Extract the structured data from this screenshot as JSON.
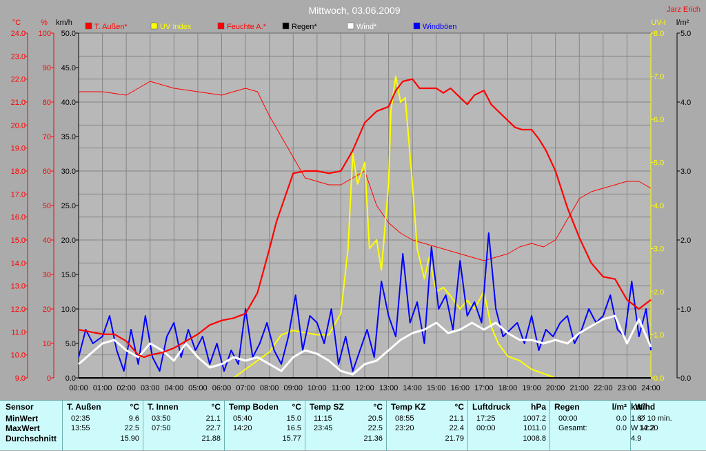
{
  "author": "Jarz Erich",
  "chart_data": {
    "type": "line",
    "title": "Mittwoch, 03.06.2009",
    "x_ticks": [
      "00:00",
      "01:00",
      "02:00",
      "03:00",
      "04:00",
      "05:00",
      "06:00",
      "07:00",
      "08:00",
      "09:00",
      "10:00",
      "11:00",
      "12:00",
      "13:00",
      "14:00",
      "15:00",
      "16:00",
      "17:00",
      "18:00",
      "19:00",
      "20:00",
      "21:00",
      "22:00",
      "23:00",
      "24:00"
    ],
    "xlim": [
      0,
      24
    ],
    "grid": true,
    "legend_position": "top",
    "axes": {
      "temp": {
        "unit": "°C",
        "ylim": [
          9,
          24
        ],
        "ticks": [
          "9.0",
          "10.0",
          "11.0",
          "12.0",
          "13.0",
          "14.0",
          "15.0",
          "16.0",
          "17.0",
          "18.0",
          "19.0",
          "20.0",
          "21.0",
          "22.0",
          "23.0",
          "24.0"
        ]
      },
      "humidity": {
        "unit": "%",
        "ylim": [
          0,
          100
        ],
        "ticks": [
          "0",
          "10",
          "20",
          "30",
          "40",
          "50",
          "60",
          "70",
          "80",
          "90",
          "100"
        ]
      },
      "wind": {
        "unit": "km/h",
        "ylim": [
          0,
          50
        ],
        "ticks": [
          "0.0",
          "5.0",
          "10.0",
          "15.0",
          "20.0",
          "25.0",
          "30.0",
          "35.0",
          "40.0",
          "45.0",
          "50.0"
        ]
      },
      "uv": {
        "unit": "UV-I",
        "ylim": [
          0,
          8
        ],
        "ticks": [
          "0.0",
          "1.0",
          "2.0",
          "3.0",
          "4.0",
          "5.0",
          "6.0",
          "7.0",
          "8.0"
        ]
      },
      "rain": {
        "unit": "l/m²",
        "ylim": [
          0,
          5
        ],
        "ticks": [
          "0.0",
          "1.0",
          "2.0",
          "3.0",
          "4.0",
          "5.0"
        ]
      }
    },
    "series": [
      {
        "name": "T. Außen*",
        "axis": "temp",
        "color": "#ff0000",
        "x": [
          0,
          0.5,
          1,
          1.5,
          2,
          2.5,
          2.75,
          3,
          3.5,
          4,
          4.5,
          5,
          5.5,
          6,
          6.5,
          7,
          7.5,
          8,
          8.3,
          8.6,
          9,
          9.5,
          10,
          10.5,
          11,
          11.5,
          12,
          12.5,
          13,
          13.3,
          13.6,
          14,
          14.3,
          14.6,
          15,
          15.3,
          15.6,
          16,
          16.3,
          16.6,
          17,
          17.3,
          17.6,
          18,
          18.3,
          18.6,
          19,
          19.3,
          19.6,
          20,
          20.5,
          21,
          21.5,
          22,
          22.5,
          23,
          23.5,
          24
        ],
        "y": [
          11.1,
          11.0,
          10.9,
          10.9,
          10.6,
          10.0,
          9.9,
          10.0,
          10.1,
          10.3,
          10.6,
          10.9,
          11.3,
          11.5,
          11.6,
          11.8,
          12.7,
          14.6,
          15.8,
          16.7,
          17.9,
          18.0,
          18.0,
          17.9,
          18.0,
          18.9,
          20.1,
          20.6,
          20.8,
          21.5,
          21.9,
          22.0,
          21.6,
          21.6,
          21.6,
          21.4,
          21.6,
          21.2,
          20.9,
          21.3,
          21.5,
          20.9,
          20.6,
          20.2,
          19.9,
          19.8,
          19.8,
          19.4,
          18.9,
          18.0,
          16.4,
          15.1,
          14.0,
          13.4,
          13.3,
          12.4,
          12.0,
          12.4
        ]
      },
      {
        "name": "UV Index",
        "axis": "uv",
        "color": "#ffff00",
        "x": [
          0,
          6.5,
          7,
          7.5,
          8,
          8.5,
          9,
          9.5,
          10,
          10.5,
          11,
          11.3,
          11.5,
          11.7,
          12,
          12.2,
          12.5,
          12.7,
          13,
          13.1,
          13.3,
          13.5,
          13.7,
          14,
          14.2,
          14.5,
          14.7,
          15,
          15.3,
          15.6,
          16,
          16.3,
          16.6,
          17,
          17.3,
          17.6,
          18,
          18.5,
          19,
          19.5,
          20,
          24
        ],
        "y": [
          0,
          0,
          0.2,
          0.4,
          0.6,
          1.0,
          1.1,
          1.05,
          1.0,
          1.0,
          1.5,
          3.0,
          5.2,
          4.5,
          5.0,
          3.0,
          3.2,
          2.5,
          4.5,
          6.2,
          7.0,
          6.4,
          6.5,
          4.5,
          3.0,
          2.3,
          2.8,
          2.0,
          2.1,
          1.9,
          1.6,
          1.8,
          1.6,
          2.0,
          1.2,
          0.8,
          0.5,
          0.4,
          0.2,
          0.1,
          0,
          0
        ]
      },
      {
        "name": "Feuchte A.*",
        "axis": "humidity",
        "color": "#ff0000",
        "x": [
          0,
          1,
          2,
          2.5,
          3,
          3.5,
          4,
          5,
          6,
          7,
          7.5,
          8,
          8.5,
          9,
          9.5,
          10,
          10.5,
          11,
          11.5,
          12,
          12.5,
          13,
          13.5,
          14,
          14.5,
          15,
          15.5,
          16,
          16.5,
          17,
          17.5,
          18,
          18.5,
          19,
          19.5,
          20,
          20.5,
          21,
          21.5,
          22,
          22.5,
          23,
          23.5,
          24
        ],
        "y": [
          83,
          83,
          82,
          84,
          86,
          85,
          84,
          83,
          82,
          84,
          83,
          76,
          70,
          64,
          58,
          57,
          56,
          56,
          58,
          60,
          50,
          45,
          42,
          40,
          39,
          38,
          37,
          36,
          35,
          34,
          35,
          36,
          38,
          39,
          38,
          40,
          46,
          52,
          54,
          55,
          56,
          57,
          57,
          55
        ]
      },
      {
        "name": "Regen*",
        "axis": "rain",
        "color": "#000000",
        "x": [
          0,
          24
        ],
        "y": [
          0,
          0
        ]
      },
      {
        "name": "Wind*",
        "axis": "wind",
        "color": "#ffffff",
        "x": [
          0,
          0.5,
          1,
          1.5,
          2,
          2.5,
          3,
          3.5,
          4,
          4.5,
          5,
          5.5,
          6,
          6.5,
          7,
          7.5,
          8,
          8.5,
          9,
          9.5,
          10,
          10.5,
          11,
          11.5,
          12,
          12.5,
          13,
          13.5,
          14,
          14.5,
          15,
          15.5,
          16,
          16.5,
          17,
          17.5,
          18,
          18.5,
          19,
          19.5,
          20,
          20.5,
          21,
          21.5,
          22,
          22.5,
          23,
          23.5,
          24
        ],
        "y": [
          2.0,
          3.5,
          5.0,
          5.5,
          4.0,
          3.0,
          5.0,
          4.0,
          2.5,
          5.0,
          3.0,
          1.5,
          2.0,
          3.0,
          2.5,
          3.0,
          2.0,
          1.0,
          3.0,
          4.0,
          3.5,
          2.5,
          1.0,
          0.5,
          2.0,
          2.5,
          4.0,
          5.5,
          6.5,
          7.0,
          8.0,
          6.5,
          7.0,
          8.0,
          7.0,
          8.0,
          6.5,
          5.5,
          5.5,
          5.0,
          5.5,
          5.0,
          6.5,
          7.5,
          8.5,
          9.0,
          5.0,
          8.5,
          4.5
        ]
      },
      {
        "name": "Windböen",
        "axis": "wind",
        "color": "#0000ff",
        "x": [
          0,
          0.3,
          0.6,
          1,
          1.3,
          1.6,
          1.9,
          2.2,
          2.5,
          2.8,
          3.1,
          3.4,
          3.7,
          4,
          4.3,
          4.6,
          4.9,
          5.2,
          5.5,
          5.8,
          6.1,
          6.4,
          6.7,
          7,
          7.3,
          7.6,
          7.9,
          8.2,
          8.5,
          8.8,
          9.1,
          9.4,
          9.7,
          10,
          10.3,
          10.6,
          10.9,
          11.2,
          11.5,
          11.8,
          12.1,
          12.4,
          12.7,
          13,
          13.3,
          13.6,
          13.9,
          14.2,
          14.5,
          14.8,
          15.1,
          15.4,
          15.7,
          16,
          16.3,
          16.6,
          16.9,
          17.2,
          17.5,
          17.8,
          18.1,
          18.4,
          18.7,
          19,
          19.3,
          19.6,
          19.9,
          20.2,
          20.5,
          20.8,
          21.1,
          21.4,
          21.7,
          22,
          22.3,
          22.6,
          22.9,
          23.2,
          23.5,
          23.8,
          24
        ],
        "y": [
          3.0,
          7.0,
          5.0,
          6.0,
          9.0,
          4.0,
          1.0,
          7.0,
          2.0,
          9.0,
          3.0,
          1.0,
          6.0,
          8.0,
          3.0,
          7.0,
          4.0,
          6.0,
          2.0,
          5.0,
          1.0,
          4.0,
          2.0,
          10.0,
          3.0,
          5.0,
          8.0,
          4.0,
          2.0,
          6.0,
          12.0,
          4.0,
          9.0,
          8.0,
          5.0,
          10.0,
          2.0,
          6.0,
          1.0,
          4.0,
          7.0,
          3.0,
          14.0,
          9.0,
          6.0,
          18.0,
          8.0,
          11.0,
          5.0,
          19.0,
          10.0,
          12.0,
          7.0,
          17.0,
          9.0,
          11.0,
          8.0,
          21.0,
          10.0,
          6.0,
          7.0,
          8.0,
          5.0,
          9.0,
          4.0,
          7.0,
          6.0,
          8.0,
          9.0,
          5.0,
          7.0,
          10.0,
          8.0,
          9.0,
          12.0,
          7.0,
          6.0,
          14.0,
          6.0,
          10.0,
          4.0
        ]
      }
    ]
  },
  "stats": {
    "row_labels": [
      "Sensor",
      "MinWert",
      "MaxWert",
      "Durchschnitt"
    ],
    "columns": [
      {
        "name": "T. Außen",
        "unit": "°C",
        "min_time": "02:35",
        "min_val": "9.6",
        "max_time": "13:55",
        "max_val": "22.5",
        "avg": "15.90"
      },
      {
        "name": "T. Innen",
        "unit": "°C",
        "min_time": "03:50",
        "min_val": "21.1",
        "max_time": "07:50",
        "max_val": "22.7",
        "avg": "21.88"
      },
      {
        "name": "Temp Boden",
        "unit": "°C",
        "min_time": "05:40",
        "min_val": "15.0",
        "max_time": "14:20",
        "max_val": "16.5",
        "avg": "15.77"
      },
      {
        "name": "Temp SZ",
        "unit": "°C",
        "min_time": "11:15",
        "min_val": "20.5",
        "max_time": "23:45",
        "max_val": "22.5",
        "avg": "21.36"
      },
      {
        "name": "Temp KZ",
        "unit": "°C",
        "min_time": "08:55",
        "min_val": "21.1",
        "max_time": "23:20",
        "max_val": "22.4",
        "avg": "21.79"
      },
      {
        "name": "Luftdruck",
        "unit": "hPa",
        "min_time": "17:25",
        "min_val": "1007.2",
        "max_time": "00:00",
        "max_val": "1011.0",
        "avg": "1008.8"
      },
      {
        "name": "Regen",
        "unit": "l/m²",
        "min_time": "00:00",
        "min_val": "0.0",
        "max_time": "Gesamt:",
        "max_val": "0.0",
        "avg": ""
      },
      {
        "name": "Wind",
        "unit": "km/h",
        "min_time": "Ø 10 min.",
        "min_val": "1.6",
        "max_time": "14:20",
        "max_val": "W 12.2",
        "avg": "4.9"
      }
    ]
  }
}
